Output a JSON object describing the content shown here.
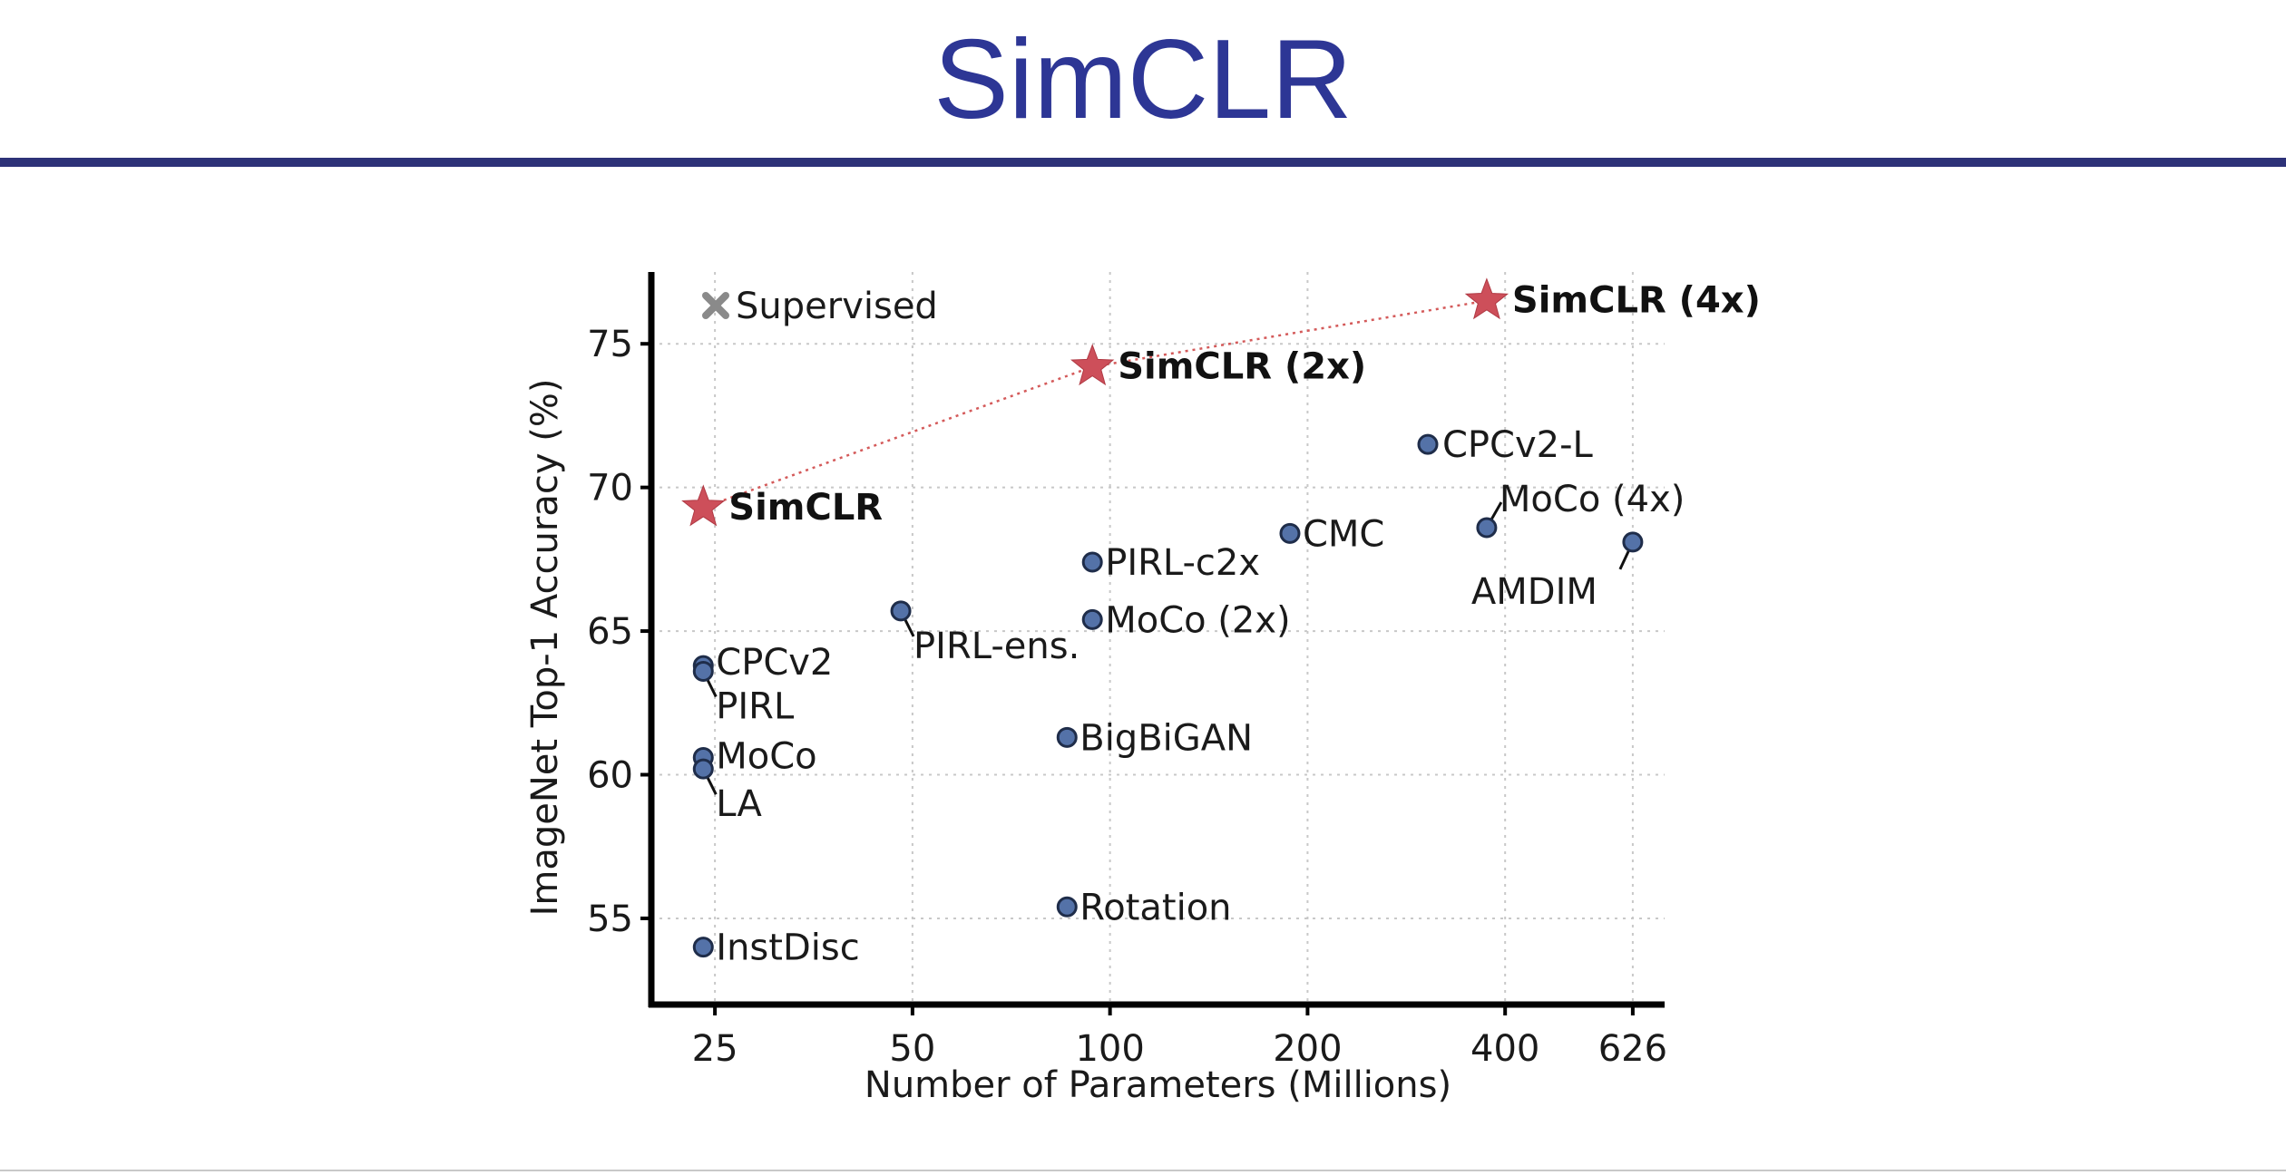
{
  "slide": {
    "title": "SimCLR"
  },
  "colors": {
    "title": "#2d3695",
    "rule": "#2d3278",
    "simclr_star": "#cd4f5a",
    "point_fill": "#5472a8",
    "point_stroke": "#1f2d4a",
    "supervised_marker": "#8a8a8a",
    "dotted_line": "#d45a5a"
  },
  "chart_data": {
    "type": "scatter",
    "xlabel": "Number of Parameters (Millions)",
    "ylabel": "ImageNet Top-1 Accuracy (%)",
    "x_scale": "log",
    "xlim": [
      20,
      700
    ],
    "ylim": [
      52,
      77.5
    ],
    "x_ticks": [
      25,
      50,
      100,
      200,
      400,
      626
    ],
    "y_ticks": [
      55,
      60,
      65,
      70,
      75
    ],
    "grid": true,
    "legend": {
      "label": "Supervised",
      "placement": "top-left",
      "marker": "cross"
    },
    "simclr_series": [
      {
        "label": "SimCLR",
        "x": 24,
        "y": 69.3
      },
      {
        "label": "SimCLR (2x)",
        "x": 94,
        "y": 74.2
      },
      {
        "label": "SimCLR (4x)",
        "x": 375,
        "y": 76.5
      }
    ],
    "points": [
      {
        "label": "CPCv2-L",
        "x": 305,
        "y": 71.5
      },
      {
        "label": "MoCo (4x)",
        "x": 375,
        "y": 68.6
      },
      {
        "label": "AMDIM",
        "x": 626,
        "y": 68.1
      },
      {
        "label": "CMC",
        "x": 188,
        "y": 68.4
      },
      {
        "label": "PIRL-c2x",
        "x": 94,
        "y": 67.4
      },
      {
        "label": "MoCo (2x)",
        "x": 94,
        "y": 65.4
      },
      {
        "label": "PIRL-ens.",
        "x": 48,
        "y": 65.7
      },
      {
        "label": "CPCv2",
        "x": 24,
        "y": 63.8
      },
      {
        "label": "PIRL",
        "x": 24,
        "y": 63.6
      },
      {
        "label": "MoCo",
        "x": 24,
        "y": 60.6
      },
      {
        "label": "LA",
        "x": 24,
        "y": 60.2
      },
      {
        "label": "BigBiGAN",
        "x": 86,
        "y": 61.3
      },
      {
        "label": "Rotation",
        "x": 86,
        "y": 55.4
      },
      {
        "label": "InstDisc",
        "x": 24,
        "y": 54.0
      }
    ]
  }
}
